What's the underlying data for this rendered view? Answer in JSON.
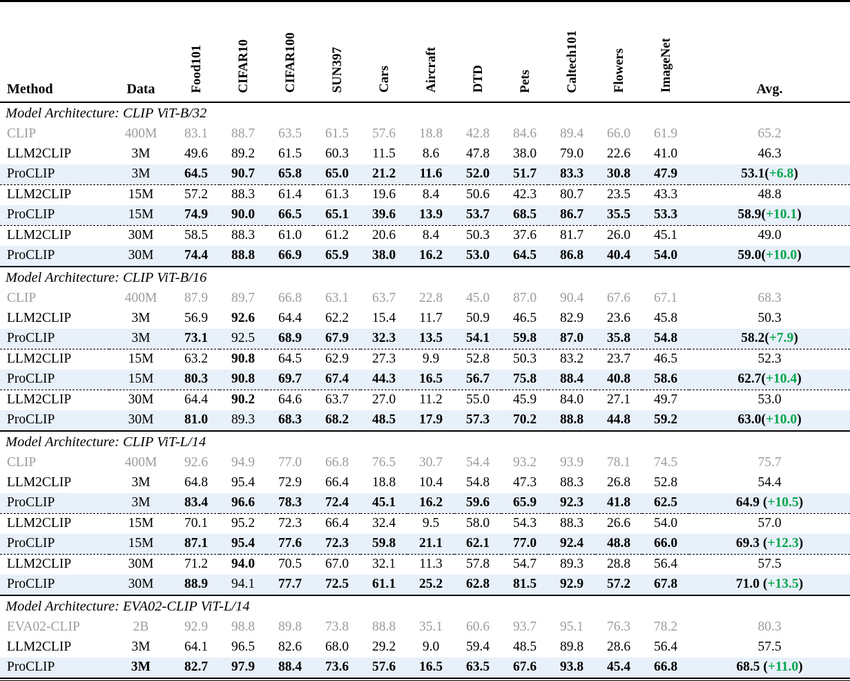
{
  "colors": {
    "highlight_row": "#e8f0fa",
    "muted_text": "#9c9c9c",
    "delta_green": "#00a64c",
    "text": "#000000"
  },
  "table": {
    "columns": [
      "Method",
      "Data",
      "Food101",
      "CIFAR10",
      "CIFAR100",
      "SUN397",
      "Cars",
      "Aircraft",
      "DTD",
      "Pets",
      "Caltech101",
      "Flowers",
      "ImageNet",
      "Avg."
    ],
    "sections": [
      {
        "title": "Model Architecture: CLIP ViT-B/32",
        "rows": [
          {
            "method": "CLIP",
            "data": "400M",
            "muted": true,
            "values": [
              "83.1",
              "88.7",
              "63.5",
              "61.5",
              "57.6",
              "18.8",
              "42.8",
              "84.6",
              "89.4",
              "66.0",
              "61.9"
            ],
            "avg": "65.2"
          },
          {
            "method": "LLM2CLIP",
            "data": "3M",
            "values": [
              "49.6",
              "89.2",
              "61.5",
              "60.3",
              "11.5",
              "8.6",
              "47.8",
              "38.0",
              "79.0",
              "22.6",
              "41.0"
            ],
            "avg": "46.3"
          },
          {
            "method": "ProCLIP",
            "data": "3M",
            "highlight": true,
            "divider_after": true,
            "bold": [
              0,
              1,
              2,
              3,
              4,
              5,
              6,
              7,
              8,
              9,
              10
            ],
            "values": [
              "64.5",
              "90.7",
              "65.8",
              "65.0",
              "21.2",
              "11.6",
              "52.0",
              "51.7",
              "83.3",
              "30.8",
              "47.9"
            ],
            "avg": "53.1",
            "avg_delta": "+6.8",
            "avg_space": false
          },
          {
            "method": "LLM2CLIP",
            "data": "15M",
            "values": [
              "57.2",
              "88.3",
              "61.4",
              "61.3",
              "19.6",
              "8.4",
              "50.6",
              "42.3",
              "80.7",
              "23.5",
              "43.3"
            ],
            "avg": "48.8"
          },
          {
            "method": "ProCLIP",
            "data": "15M",
            "highlight": true,
            "divider_after": true,
            "bold": [
              0,
              1,
              2,
              3,
              4,
              5,
              6,
              7,
              8,
              9,
              10
            ],
            "values": [
              "74.9",
              "90.0",
              "66.5",
              "65.1",
              "39.6",
              "13.9",
              "53.7",
              "68.5",
              "86.7",
              "35.5",
              "53.3"
            ],
            "avg": "58.9",
            "avg_delta": "+10.1",
            "avg_space": false
          },
          {
            "method": "LLM2CLIP",
            "data": "30M",
            "values": [
              "58.5",
              "88.3",
              "61.0",
              "61.2",
              "20.6",
              "8.4",
              "50.3",
              "37.6",
              "81.7",
              "26.0",
              "45.1"
            ],
            "avg": "49.0"
          },
          {
            "method": "ProCLIP",
            "data": "30M",
            "highlight": true,
            "bold": [
              0,
              1,
              2,
              3,
              4,
              5,
              6,
              7,
              8,
              9,
              10
            ],
            "values": [
              "74.4",
              "88.8",
              "66.9",
              "65.9",
              "38.0",
              "16.2",
              "53.0",
              "64.5",
              "86.8",
              "40.4",
              "54.0"
            ],
            "avg": "59.0",
            "avg_delta": "+10.0",
            "avg_space": false
          }
        ]
      },
      {
        "title": "Model Architecture: CLIP ViT-B/16",
        "rows": [
          {
            "method": "CLIP",
            "data": "400M",
            "muted": true,
            "values": [
              "87.9",
              "89.7",
              "66.8",
              "63.1",
              "63.7",
              "22.8",
              "45.0",
              "87.0",
              "90.4",
              "67.6",
              "67.1"
            ],
            "avg": "68.3"
          },
          {
            "method": "LLM2CLIP",
            "data": "3M",
            "bold": [
              1
            ],
            "values": [
              "56.9",
              "92.6",
              "64.4",
              "62.2",
              "15.4",
              "11.7",
              "50.9",
              "46.5",
              "82.9",
              "23.6",
              "45.8"
            ],
            "avg": "50.3"
          },
          {
            "method": "ProCLIP",
            "data": "3M",
            "highlight": true,
            "divider_after": true,
            "bold": [
              0,
              2,
              3,
              4,
              5,
              6,
              7,
              8,
              9,
              10
            ],
            "values": [
              "73.1",
              "92.5",
              "68.9",
              "67.9",
              "32.3",
              "13.5",
              "54.1",
              "59.8",
              "87.0",
              "35.8",
              "54.8"
            ],
            "avg": "58.2",
            "avg_delta": "+7.9",
            "avg_space": false
          },
          {
            "method": "LLM2CLIP",
            "data": "15M",
            "bold": [
              1
            ],
            "values": [
              "63.2",
              "90.8",
              "64.5",
              "62.9",
              "27.3",
              "9.9",
              "52.8",
              "50.3",
              "83.2",
              "23.7",
              "46.5"
            ],
            "avg": "52.3"
          },
          {
            "method": "ProCLIP",
            "data": "15M",
            "highlight": true,
            "divider_after": true,
            "bold": [
              0,
              1,
              2,
              3,
              4,
              5,
              6,
              7,
              8,
              9,
              10
            ],
            "values": [
              "80.3",
              "90.8",
              "69.7",
              "67.4",
              "44.3",
              "16.5",
              "56.7",
              "75.8",
              "88.4",
              "40.8",
              "58.6"
            ],
            "avg": "62.7",
            "avg_delta": "+10.4",
            "avg_space": false
          },
          {
            "method": "LLM2CLIP",
            "data": "30M",
            "bold": [
              1
            ],
            "values": [
              "64.4",
              "90.2",
              "64.6",
              "63.7",
              "27.0",
              "11.2",
              "55.0",
              "45.9",
              "84.0",
              "27.1",
              "49.7"
            ],
            "avg": "53.0"
          },
          {
            "method": "ProCLIP",
            "data": "30M",
            "highlight": true,
            "bold": [
              0,
              2,
              3,
              4,
              5,
              6,
              7,
              8,
              9,
              10
            ],
            "values": [
              "81.0",
              "89.3",
              "68.3",
              "68.2",
              "48.5",
              "17.9",
              "57.3",
              "70.2",
              "88.8",
              "44.8",
              "59.2"
            ],
            "avg": "63.0",
            "avg_delta": "+10.0",
            "avg_space": false
          }
        ]
      },
      {
        "title": "Model Architecture: CLIP ViT-L/14",
        "rows": [
          {
            "method": "CLIP",
            "data": "400M",
            "muted": true,
            "values": [
              "92.6",
              "94.9",
              "77.0",
              "66.8",
              "76.5",
              "30.7",
              "54.4",
              "93.2",
              "93.9",
              "78.1",
              "74.5"
            ],
            "avg": "75.7"
          },
          {
            "method": "LLM2CLIP",
            "data": "3M",
            "values": [
              "64.8",
              "95.4",
              "72.9",
              "66.4",
              "18.8",
              "10.4",
              "54.8",
              "47.3",
              "88.3",
              "26.8",
              "52.8"
            ],
            "avg": "54.4"
          },
          {
            "method": "ProCLIP",
            "data": "3M",
            "highlight": true,
            "divider_after": true,
            "bold": [
              0,
              1,
              2,
              3,
              4,
              5,
              6,
              7,
              8,
              9,
              10
            ],
            "values": [
              "83.4",
              "96.6",
              "78.3",
              "72.4",
              "45.1",
              "16.2",
              "59.6",
              "65.9",
              "92.3",
              "41.8",
              "62.5"
            ],
            "avg": "64.9",
            "avg_delta": "+10.5",
            "avg_space": true
          },
          {
            "method": "LLM2CLIP",
            "data": "15M",
            "values": [
              "70.1",
              "95.2",
              "72.3",
              "66.4",
              "32.4",
              "9.5",
              "58.0",
              "54.3",
              "88.3",
              "26.6",
              "54.0"
            ],
            "avg": "57.0"
          },
          {
            "method": "ProCLIP",
            "data": "15M",
            "highlight": true,
            "divider_after": true,
            "bold": [
              0,
              1,
              2,
              3,
              4,
              5,
              6,
              7,
              8,
              9,
              10
            ],
            "values": [
              "87.1",
              "95.4",
              "77.6",
              "72.3",
              "59.8",
              "21.1",
              "62.1",
              "77.0",
              "92.4",
              "48.8",
              "66.0"
            ],
            "avg": "69.3",
            "avg_delta": "+12.3",
            "avg_space": true
          },
          {
            "method": "LLM2CLIP",
            "data": "30M",
            "bold": [
              1
            ],
            "values": [
              "71.2",
              "94.0",
              "70.5",
              "67.0",
              "32.1",
              "11.3",
              "57.8",
              "54.7",
              "89.3",
              "28.8",
              "56.4"
            ],
            "avg": "57.5"
          },
          {
            "method": "ProCLIP",
            "data": "30M",
            "highlight": true,
            "bold": [
              0,
              2,
              3,
              4,
              5,
              6,
              7,
              8,
              9,
              10
            ],
            "values": [
              "88.9",
              "94.1",
              "77.7",
              "72.5",
              "61.1",
              "25.2",
              "62.8",
              "81.5",
              "92.9",
              "57.2",
              "67.8"
            ],
            "avg": "71.0",
            "avg_delta": "+13.5",
            "avg_space": true
          }
        ]
      },
      {
        "title": "Model Architecture: EVA02-CLIP ViT-L/14",
        "rows": [
          {
            "method": "EVA02-CLIP",
            "data": "2B",
            "muted": true,
            "values": [
              "92.9",
              "98.8",
              "89.8",
              "73.8",
              "88.8",
              "35.1",
              "60.6",
              "93.7",
              "95.1",
              "76.3",
              "78.2"
            ],
            "avg": "80.3"
          },
          {
            "method": "LLM2CLIP",
            "data": "3M",
            "values": [
              "64.1",
              "96.5",
              "82.6",
              "68.0",
              "29.2",
              "9.0",
              "59.4",
              "48.5",
              "89.8",
              "28.6",
              "56.4"
            ],
            "avg": "57.5"
          },
          {
            "method": "ProCLIP",
            "data": "3M",
            "data_bold": true,
            "highlight": true,
            "bold": [
              0,
              1,
              2,
              3,
              4,
              5,
              6,
              7,
              8,
              9,
              10
            ],
            "values": [
              "82.7",
              "97.9",
              "88.4",
              "73.6",
              "57.6",
              "16.5",
              "63.5",
              "67.6",
              "93.8",
              "45.4",
              "66.8"
            ],
            "avg": "68.5",
            "avg_delta": "+11.0",
            "avg_space": true
          }
        ]
      }
    ]
  }
}
